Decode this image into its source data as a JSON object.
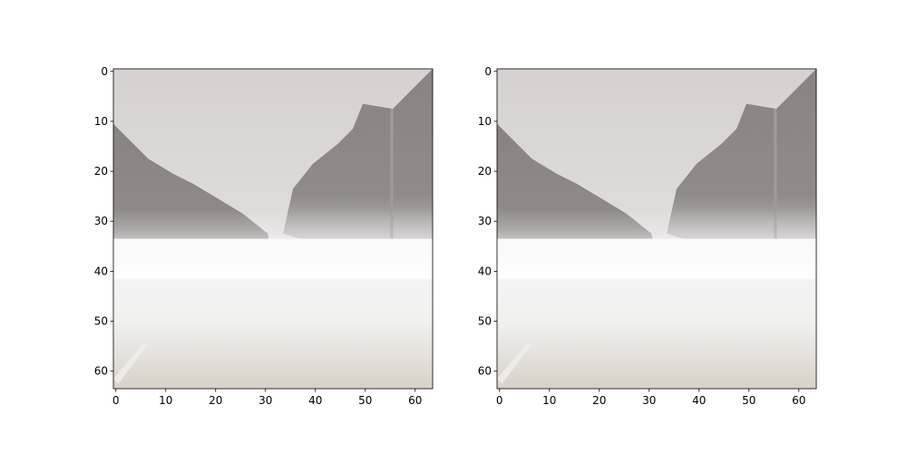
{
  "chart_data": [
    {
      "type": "image",
      "xlim": [
        -0.5,
        63.5
      ],
      "ylim": [
        63.5,
        -0.5
      ],
      "xticks": [
        0,
        10,
        20,
        30,
        40,
        50,
        60
      ],
      "yticks": [
        0,
        10,
        20,
        30,
        40,
        50,
        60
      ]
    },
    {
      "type": "image",
      "xlim": [
        -0.5,
        63.5
      ],
      "ylim": [
        63.5,
        -0.5
      ],
      "xticks": [
        0,
        10,
        20,
        30,
        40,
        50,
        60
      ],
      "yticks": [
        0,
        10,
        20,
        30,
        40,
        50,
        60
      ]
    }
  ]
}
